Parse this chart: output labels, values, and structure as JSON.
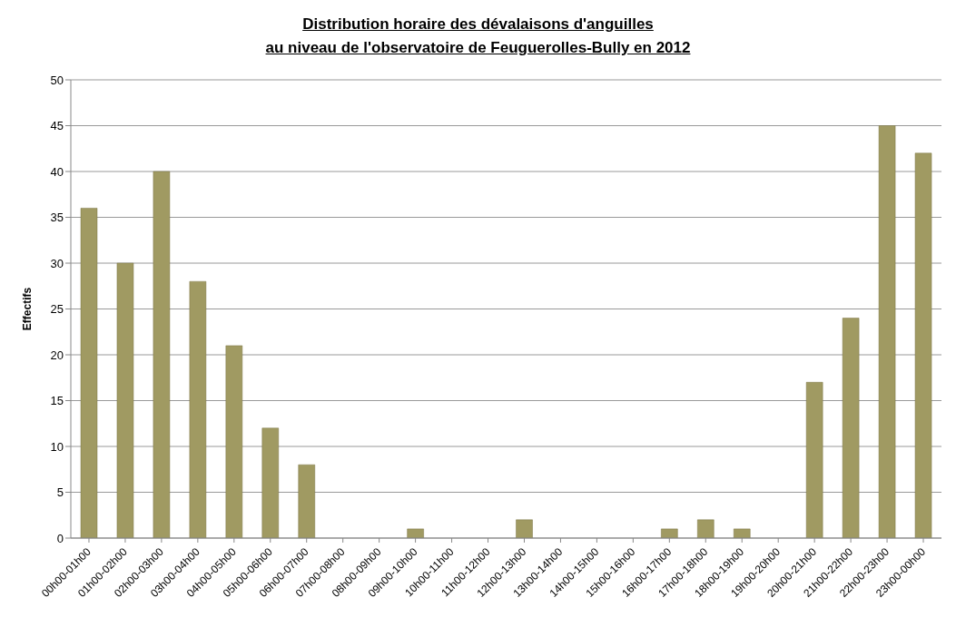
{
  "chart_data": {
    "type": "bar",
    "title": "Distribution horaire des dévalaisons d'anguilles\nau niveau de l'observatoire de Feuguerolles-Bully en 2012",
    "ylabel": "Effectifs",
    "categories": [
      "00h00-01h00",
      "01h00-02h00",
      "02h00-03h00",
      "03h00-04h00",
      "04h00-05h00",
      "05h00-06h00",
      "06h00-07h00",
      "07h00-08h00",
      "08h00-09h00",
      "09h00-10h00",
      "10h00-11h00",
      "11h00-12h00",
      "12h00-13h00",
      "13h00-14h00",
      "14h00-15h00",
      "15h00-16h00",
      "16h00-17h00",
      "17h00-18h00",
      "18h00-19h00",
      "19h00-20h00",
      "20h00-21h00",
      "21h00-22h00",
      "22h00-23h00",
      "23h00-00h00"
    ],
    "values": [
      36,
      30,
      40,
      28,
      21,
      12,
      8,
      0,
      0,
      1,
      0,
      0,
      2,
      0,
      0,
      0,
      1,
      2,
      1,
      0,
      17,
      24,
      45,
      42
    ],
    "color": "#a09a62",
    "ylim": [
      0,
      50
    ],
    "yticks": [
      0,
      5,
      10,
      15,
      20,
      25,
      30,
      35,
      40,
      45,
      50
    ],
    "grid": "y",
    "legend": false
  }
}
